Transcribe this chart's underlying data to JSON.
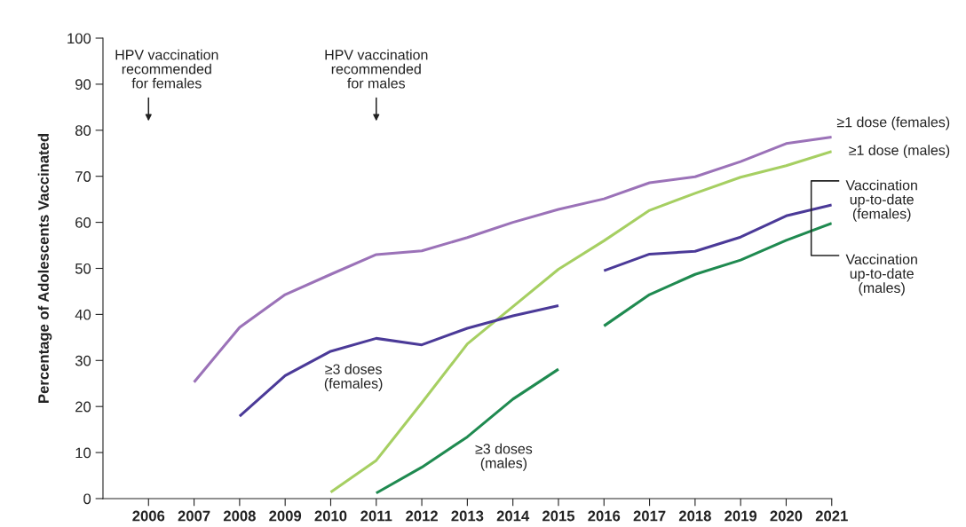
{
  "chart_data": {
    "type": "line",
    "ylabel": "Percentage of Adolescents Vaccinated",
    "xlim": [
      2005,
      2021
    ],
    "xticks": [
      2006,
      2007,
      2008,
      2009,
      2010,
      2011,
      2012,
      2013,
      2014,
      2015,
      2016,
      2017,
      2018,
      2019,
      2020,
      2021
    ],
    "ylim": [
      0,
      100
    ],
    "yticks": [
      0,
      10,
      20,
      30,
      40,
      50,
      60,
      70,
      80,
      90,
      100
    ],
    "grid": false,
    "legend": false,
    "marker": "none",
    "line_style": "solid",
    "annotations": [
      "HPV vaccination\nrecommended\nfor females",
      "HPV vaccination\nrecommended\nfor males"
    ],
    "series": [
      {
        "name": "≥1 dose (females)",
        "color": "#9b72b8",
        "x": [
          2007,
          2008,
          2009,
          2010,
          2011,
          2012,
          2013,
          2014,
          2015,
          2016,
          2017,
          2018,
          2019,
          2020,
          2021
        ],
        "values": [
          25.3,
          37.2,
          44.3,
          48.7,
          53.0,
          53.8,
          56.7,
          60.0,
          62.8,
          65.1,
          68.6,
          69.9,
          73.2,
          77.1,
          78.5
        ]
      },
      {
        "name": "≥1 dose (males)",
        "color": "#a6cf62",
        "x": [
          2010,
          2011,
          2012,
          2013,
          2014,
          2015,
          2016,
          2017,
          2018,
          2019,
          2020,
          2021
        ],
        "values": [
          1.4,
          8.3,
          20.8,
          33.6,
          41.7,
          49.8,
          56.0,
          62.6,
          66.3,
          69.8,
          72.3,
          75.4
        ]
      },
      {
        "name": "≥3 doses\n(females)",
        "color": "#4b3a98",
        "x": [
          2008,
          2009,
          2010,
          2011,
          2012,
          2013,
          2014,
          2015
        ],
        "values": [
          17.9,
          26.7,
          32.0,
          34.8,
          33.4,
          37.0,
          39.7,
          41.9
        ]
      },
      {
        "name": "Vaccination\nup-to-date\n(females)",
        "color": "#4b3a98",
        "x": [
          2016,
          2017,
          2018,
          2019,
          2020,
          2021
        ],
        "values": [
          49.5,
          53.1,
          53.7,
          56.8,
          61.4,
          63.8
        ]
      },
      {
        "name": "≥3 doses\n(males)",
        "color": "#1f8a50",
        "x": [
          2011,
          2012,
          2013,
          2014,
          2015
        ],
        "values": [
          1.2,
          6.8,
          13.4,
          21.6,
          28.1
        ]
      },
      {
        "name": "Vaccination\nup-to-date\n(males)",
        "color": "#1f8a50",
        "x": [
          2016,
          2017,
          2018,
          2019,
          2020,
          2021
        ],
        "values": [
          37.5,
          44.3,
          48.7,
          51.8,
          56.1,
          59.8
        ]
      }
    ]
  }
}
